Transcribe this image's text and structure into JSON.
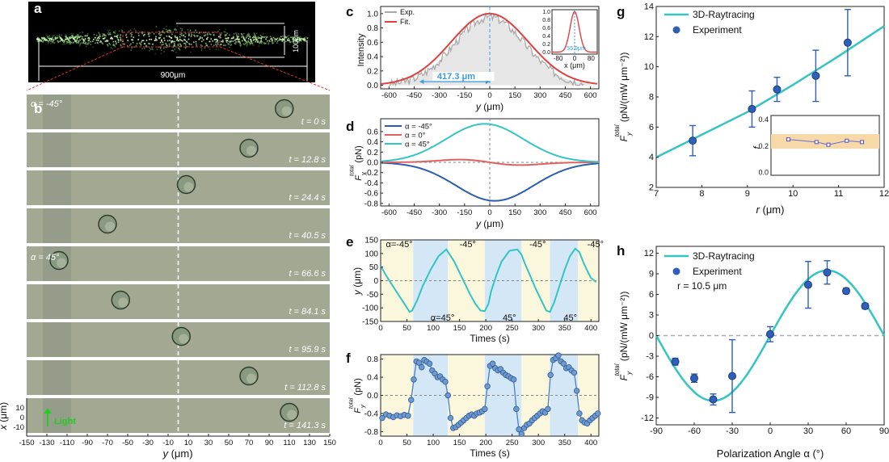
{
  "colors": {
    "line_a": "#2a5cb0",
    "line_b": "#e06060",
    "line_c": "#33c4c4",
    "dash": "#888888",
    "mark": "#2f5fb8",
    "inset_band": "#f7d9a8",
    "shade_blue": "#d3e7f7",
    "shade_yellow": "#fbf7dd",
    "micro_bg": "#a2a892",
    "micro_bg2": "#8e9585"
  },
  "panel_a": {
    "label": "a",
    "dim_width": "900μm",
    "dim_height": "100μm"
  },
  "panel_b": {
    "label": "b",
    "xlabel": "y (μm)",
    "ylabel": "x (μm)",
    "light_label": "Light",
    "xticks": [
      "-150",
      "-130",
      "-110",
      "-90",
      "-70",
      "-50",
      "-30",
      "-10",
      "10",
      "30",
      "50",
      "70",
      "90",
      "110",
      "130",
      "150"
    ],
    "yticks": [
      "10",
      "0",
      "-10"
    ],
    "frames": [
      {
        "time": "t = 0 s",
        "angle": "α = -45°",
        "particle_y": 105
      },
      {
        "time": "t = 12.8 s",
        "angle": "",
        "particle_y": 70
      },
      {
        "time": "t = 24.4 s",
        "angle": "",
        "particle_y": 8
      },
      {
        "time": "t = 40.5 s",
        "angle": "",
        "particle_y": -70
      },
      {
        "time": "t = 66.6 s",
        "angle": "α = 45°",
        "particle_y": -118
      },
      {
        "time": "t = 84.1 s",
        "angle": "",
        "particle_y": -57
      },
      {
        "time": "t = 95.9 s",
        "angle": "",
        "particle_y": 3
      },
      {
        "time": "t = 112.8 s",
        "angle": "",
        "particle_y": 70
      },
      {
        "time": "t = 141.3 s",
        "angle": "",
        "particle_y": 110
      }
    ]
  },
  "chart_data": [
    {
      "id": "c",
      "type": "line",
      "label": "c",
      "xlabel": "y (μm)",
      "ylabel": "Intensity",
      "xlim": [
        -650,
        650
      ],
      "ylim": [
        -0.05,
        1.1
      ],
      "xticks": [
        -600,
        -450,
        -300,
        -150,
        0,
        150,
        300,
        450,
        600
      ],
      "yticks": [
        0.0,
        0.2,
        0.4,
        0.6,
        0.8,
        1.0
      ],
      "series": [
        {
          "name": "Exp.",
          "color": "#aaaaaa",
          "kind": "gauss_noisy",
          "sigma": 210,
          "amp": 0.95
        },
        {
          "name": "Fit.",
          "color": "#e04040",
          "kind": "gauss",
          "sigma": 210,
          "amp": 0.95
        }
      ],
      "annotation": "417.3 μm",
      "annot_x": [
        -417.3,
        0
      ],
      "inset": {
        "xlabel": "x (μm)",
        "xticks": [
          -80,
          0,
          80
        ],
        "yticks": [
          0.0,
          0.2,
          0.4,
          0.6,
          0.8,
          1.0
        ],
        "annotation": "55.9μm",
        "sigma": 22
      }
    },
    {
      "id": "d",
      "type": "line",
      "label": "d",
      "xlabel": "y (μm)",
      "ylabel": "F_y^total (pN)",
      "xlim": [
        -650,
        650
      ],
      "ylim": [
        -0.85,
        0.85
      ],
      "xticks": [
        -600,
        -450,
        -300,
        -150,
        0,
        150,
        300,
        450,
        600
      ],
      "yticks": [
        0.6,
        0.4,
        0.2,
        0.0,
        -0.2,
        -0.4,
        -0.6,
        -0.8
      ],
      "series": [
        {
          "name": "α = -45°",
          "color": "#2a5cb0",
          "kind": "neg",
          "amp": -0.75
        },
        {
          "name": "α = 0°",
          "color": "#e06060",
          "kind": "odd",
          "amp": 0.06
        },
        {
          "name": "α = 45°",
          "color": "#33c4c4",
          "kind": "pos",
          "amp": 0.75
        }
      ]
    },
    {
      "id": "e",
      "type": "line",
      "label": "e",
      "xlabel": "Times (s)",
      "ylabel": "y (μm)",
      "xlim": [
        0,
        415
      ],
      "ylim": [
        -150,
        150
      ],
      "xticks": [
        0,
        50,
        100,
        150,
        200,
        250,
        300,
        350,
        400
      ],
      "yticks": [
        150,
        100,
        50,
        0,
        -50,
        -100,
        -150
      ],
      "series": [
        {
          "name": "y",
          "color": "#33c4c4",
          "x": [
            0,
            10,
            20,
            30,
            45,
            55,
            60,
            70,
            80,
            95,
            110,
            125,
            130,
            140,
            150,
            160,
            170,
            180,
            190,
            198,
            205,
            210,
            220,
            230,
            245,
            260,
            268,
            275,
            285,
            295,
            305,
            315,
            322,
            330,
            340,
            350,
            360,
            370,
            378,
            385,
            392,
            400,
            410
          ],
          "values": [
            55,
            20,
            -10,
            -40,
            -85,
            -115,
            -110,
            -70,
            -20,
            40,
            90,
            115,
            100,
            70,
            30,
            -10,
            -50,
            -85,
            -110,
            -112,
            -85,
            -40,
            20,
            70,
            110,
            115,
            95,
            60,
            15,
            -30,
            -70,
            -110,
            -115,
            -80,
            -20,
            40,
            90,
            118,
            105,
            70,
            40,
            10,
            -5
          ]
        }
      ],
      "shades": [
        [
          0,
          62,
          "y"
        ],
        [
          62,
          128,
          "b"
        ],
        [
          128,
          198,
          "y"
        ],
        [
          198,
          268,
          "b"
        ],
        [
          268,
          322,
          "y"
        ],
        [
          322,
          375,
          "b"
        ],
        [
          375,
          415,
          "y"
        ]
      ],
      "labels": [
        {
          "t": "α=-45°",
          "x": 10,
          "y": 135
        },
        {
          "t": "-45°",
          "x": 150,
          "y": 135
        },
        {
          "t": "-45°",
          "x": 283,
          "y": 135
        },
        {
          "t": "-45°",
          "x": 393,
          "y": 135
        },
        {
          "t": "α=45°",
          "x": 95,
          "y": -135
        },
        {
          "t": "45°",
          "x": 232,
          "y": -135
        },
        {
          "t": "45°",
          "x": 348,
          "y": -135
        }
      ]
    },
    {
      "id": "f",
      "type": "line",
      "label": "f",
      "xlabel": "Times (s)",
      "ylabel": "F_y^total (pN)",
      "xlim": [
        0,
        415
      ],
      "ylim": [
        -0.9,
        0.9
      ],
      "xticks": [
        0,
        50,
        100,
        150,
        200,
        250,
        300,
        350,
        400
      ],
      "yticks": [
        0.8,
        0.4,
        0.0,
        -0.4,
        -0.8
      ],
      "series": [
        {
          "name": "F",
          "color": "#4a7ec0",
          "x": [
            3,
            10,
            17,
            24,
            31,
            38,
            45,
            52,
            58,
            63,
            68,
            73,
            78,
            83,
            88,
            93,
            98,
            103,
            108,
            113,
            118,
            123,
            128,
            133,
            138,
            143,
            148,
            153,
            158,
            163,
            168,
            173,
            178,
            183,
            188,
            193,
            198,
            203,
            208,
            213,
            218,
            223,
            228,
            233,
            238,
            243,
            248,
            253,
            258,
            263,
            268,
            273,
            278,
            283,
            288,
            293,
            298,
            303,
            308,
            313,
            318,
            323,
            328,
            333,
            338,
            343,
            348,
            353,
            358,
            363,
            368,
            373,
            378,
            383,
            388,
            393,
            398,
            403,
            408,
            413
          ],
          "values": [
            -0.5,
            -0.42,
            -0.45,
            -0.48,
            -0.44,
            -0.46,
            -0.43,
            -0.45,
            -0.1,
            0.35,
            0.75,
            0.72,
            0.62,
            0.78,
            0.74,
            0.7,
            0.55,
            0.48,
            0.4,
            0.42,
            0.35,
            0.3,
            0.0,
            -0.5,
            -0.72,
            -0.7,
            -0.65,
            -0.6,
            -0.55,
            -0.5,
            -0.45,
            -0.42,
            -0.45,
            -0.4,
            -0.38,
            -0.35,
            -0.3,
            0.2,
            0.65,
            0.7,
            0.6,
            0.55,
            0.58,
            0.5,
            0.45,
            0.42,
            0.38,
            0.35,
            -0.3,
            -0.75,
            -0.85,
            -0.72,
            -0.65,
            -0.62,
            -0.55,
            -0.5,
            -0.45,
            -0.4,
            -0.35,
            -0.38,
            -0.3,
            0.45,
            0.78,
            0.82,
            0.88,
            0.75,
            0.7,
            0.6,
            0.62,
            0.55,
            0.5,
            0.1,
            -0.4,
            -0.55,
            -0.6,
            -0.62,
            -0.55,
            -0.5,
            -0.45,
            -0.4
          ]
        }
      ],
      "shades": [
        [
          0,
          62,
          "y"
        ],
        [
          62,
          128,
          "b"
        ],
        [
          128,
          198,
          "y"
        ],
        [
          198,
          268,
          "b"
        ],
        [
          268,
          322,
          "y"
        ],
        [
          322,
          375,
          "b"
        ],
        [
          375,
          415,
          "y"
        ]
      ]
    },
    {
      "id": "g",
      "type": "line+scatter",
      "label": "g",
      "xlabel": "r (μm)",
      "ylabel": "F_y^total (pN/(mW μm^-2))",
      "xlim": [
        7,
        12
      ],
      "ylim": [
        2,
        14
      ],
      "xticks": [
        7,
        8,
        9,
        10,
        11,
        12
      ],
      "yticks": [
        2,
        4,
        6,
        8,
        10,
        12,
        14
      ],
      "legend": [
        "3D-Raytracing",
        "Experiment"
      ],
      "line": {
        "x": [
          7,
          8,
          9,
          10,
          11,
          12
        ],
        "values": [
          4.0,
          5.5,
          7.0,
          8.8,
          10.7,
          12.7
        ]
      },
      "points": {
        "x": [
          7.8,
          9.1,
          9.65,
          10.5,
          11.2
        ],
        "values": [
          5.1,
          7.2,
          8.5,
          9.4,
          11.6
        ],
        "err": [
          1.0,
          1.2,
          0.8,
          1.7,
          2.2
        ]
      },
      "inset": {
        "ylabel": "f",
        "yticks": [
          0.4,
          0.2,
          0.0
        ],
        "x": [
          7.8,
          9.1,
          9.65,
          10.5,
          11.2
        ],
        "values": [
          0.25,
          0.23,
          0.21,
          0.24,
          0.23
        ]
      }
    },
    {
      "id": "h",
      "type": "line+scatter",
      "label": "h",
      "xlabel": "Polarization Angle α (°)",
      "ylabel": "F_y^total (pN/(mW μm^-2))",
      "xlim": [
        -90,
        90
      ],
      "ylim": [
        -13,
        13
      ],
      "xticks": [
        -90,
        -60,
        -30,
        0,
        30,
        60,
        90
      ],
      "yticks": [
        12,
        9,
        6,
        3,
        0,
        -3,
        -6,
        -9,
        -12
      ],
      "legend": [
        "3D-Raytracing",
        "Experiment"
      ],
      "note": "r = 10.5 μm",
      "points": {
        "x": [
          -75,
          -60,
          -45,
          -30,
          0,
          30,
          45,
          60,
          75
        ],
        "values": [
          -3.8,
          -6.2,
          -9.3,
          -5.9,
          0.2,
          7.4,
          9.2,
          6.5,
          4.3
        ],
        "err": [
          0.5,
          0.6,
          0.8,
          5.3,
          1.1,
          3.4,
          1.7,
          0.4,
          0.4
        ]
      }
    }
  ]
}
